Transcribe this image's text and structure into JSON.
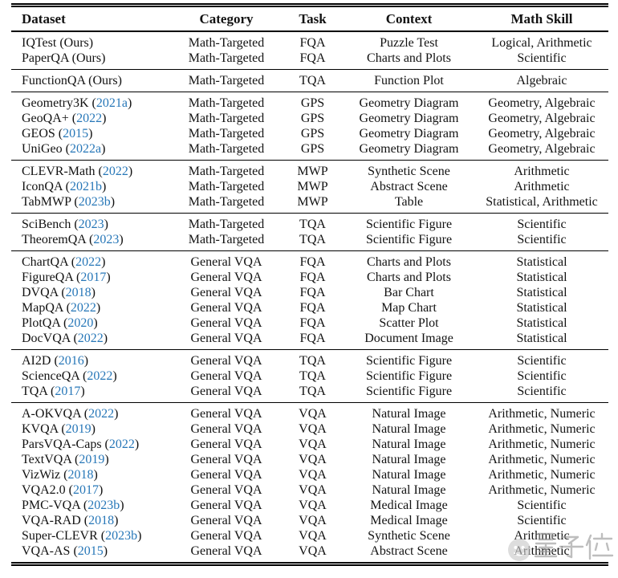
{
  "colors": {
    "citation_blue": "#2777b8",
    "text": "#121212",
    "rule": "#000000",
    "watermark_gray": "#9b9b9b"
  },
  "table": {
    "columns": [
      "Dataset",
      "Category",
      "Task",
      "Context",
      "Math Skill"
    ],
    "groups": [
      [
        {
          "dataset": "IQTest",
          "ref": "Ours",
          "ref_blue": false,
          "category": "Math-Targeted",
          "task": "FQA",
          "context": "Puzzle Test",
          "skill": "Logical, Arithmetic"
        },
        {
          "dataset": "PaperQA",
          "ref": "Ours",
          "ref_blue": false,
          "category": "Math-Targeted",
          "task": "FQA",
          "context": "Charts and Plots",
          "skill": "Scientific"
        }
      ],
      [
        {
          "dataset": "FunctionQA",
          "ref": "Ours",
          "ref_blue": false,
          "category": "Math-Targeted",
          "task": "TQA",
          "context": "Function Plot",
          "skill": "Algebraic"
        }
      ],
      [
        {
          "dataset": "Geometry3K",
          "ref": "2021a",
          "ref_blue": true,
          "category": "Math-Targeted",
          "task": "GPS",
          "context": "Geometry Diagram",
          "skill": "Geometry, Algebraic"
        },
        {
          "dataset": "GeoQA+",
          "ref": "2022",
          "ref_blue": true,
          "category": "Math-Targeted",
          "task": "GPS",
          "context": "Geometry Diagram",
          "skill": "Geometry, Algebraic"
        },
        {
          "dataset": "GEOS",
          "ref": "2015",
          "ref_blue": true,
          "category": "Math-Targeted",
          "task": "GPS",
          "context": "Geometry Diagram",
          "skill": "Geometry, Algebraic"
        },
        {
          "dataset": "UniGeo",
          "ref": "2022a",
          "ref_blue": true,
          "category": "Math-Targeted",
          "task": "GPS",
          "context": "Geometry Diagram",
          "skill": "Geometry, Algebraic"
        }
      ],
      [
        {
          "dataset": "CLEVR-Math",
          "ref": "2022",
          "ref_blue": true,
          "category": "Math-Targeted",
          "task": "MWP",
          "context": "Synthetic Scene",
          "skill": "Arithmetic"
        },
        {
          "dataset": "IconQA",
          "ref": "2021b",
          "ref_blue": true,
          "category": "Math-Targeted",
          "task": "MWP",
          "context": "Abstract Scene",
          "skill": "Arithmetic"
        },
        {
          "dataset": "TabMWP",
          "ref": "2023b",
          "ref_blue": true,
          "category": "Math-Targeted",
          "task": "MWP",
          "context": "Table",
          "skill": "Statistical, Arithmetic"
        }
      ],
      [
        {
          "dataset": "SciBench",
          "ref": "2023",
          "ref_blue": true,
          "category": "Math-Targeted",
          "task": "TQA",
          "context": "Scientific Figure",
          "skill": "Scientific"
        },
        {
          "dataset": "TheoremQA",
          "ref": "2023",
          "ref_blue": true,
          "category": "Math-Targeted",
          "task": "TQA",
          "context": "Scientific Figure",
          "skill": "Scientific"
        }
      ],
      [
        {
          "dataset": "ChartQA",
          "ref": "2022",
          "ref_blue": true,
          "category": "General VQA",
          "task": "FQA",
          "context": "Charts and Plots",
          "skill": "Statistical"
        },
        {
          "dataset": "FigureQA",
          "ref": "2017",
          "ref_blue": true,
          "category": "General VQA",
          "task": "FQA",
          "context": "Charts and Plots",
          "skill": "Statistical"
        },
        {
          "dataset": "DVQA",
          "ref": "2018",
          "ref_blue": true,
          "category": "General VQA",
          "task": "FQA",
          "context": "Bar Chart",
          "skill": "Statistical"
        },
        {
          "dataset": "MapQA",
          "ref": "2022",
          "ref_blue": true,
          "category": "General VQA",
          "task": "FQA",
          "context": "Map Chart",
          "skill": "Statistical"
        },
        {
          "dataset": "PlotQA",
          "ref": "2020",
          "ref_blue": true,
          "category": "General VQA",
          "task": "FQA",
          "context": "Scatter Plot",
          "skill": "Statistical"
        },
        {
          "dataset": "DocVQA",
          "ref": "2022",
          "ref_blue": true,
          "category": "General VQA",
          "task": "FQA",
          "context": "Document Image",
          "skill": "Statistical"
        }
      ],
      [
        {
          "dataset": "AI2D",
          "ref": "2016",
          "ref_blue": true,
          "category": "General VQA",
          "task": "TQA",
          "context": "Scientific Figure",
          "skill": "Scientific"
        },
        {
          "dataset": "ScienceQA",
          "ref": "2022",
          "ref_blue": true,
          "category": "General VQA",
          "task": "TQA",
          "context": "Scientific Figure",
          "skill": "Scientific"
        },
        {
          "dataset": "TQA",
          "ref": "2017",
          "ref_blue": true,
          "category": "General VQA",
          "task": "TQA",
          "context": "Scientific Figure",
          "skill": "Scientific"
        }
      ],
      [
        {
          "dataset": "A-OKVQA",
          "ref": "2022",
          "ref_blue": true,
          "category": "General VQA",
          "task": "VQA",
          "context": "Natural Image",
          "skill": "Arithmetic, Numeric"
        },
        {
          "dataset": "KVQA",
          "ref": "2019",
          "ref_blue": true,
          "category": "General VQA",
          "task": "VQA",
          "context": "Natural Image",
          "skill": "Arithmetic, Numeric"
        },
        {
          "dataset": "ParsVQA-Caps",
          "ref": "2022",
          "ref_blue": true,
          "category": "General VQA",
          "task": "VQA",
          "context": "Natural Image",
          "skill": "Arithmetic, Numeric"
        },
        {
          "dataset": "TextVQA",
          "ref": "2019",
          "ref_blue": true,
          "category": "General VQA",
          "task": "VQA",
          "context": "Natural Image",
          "skill": "Arithmetic, Numeric"
        },
        {
          "dataset": "VizWiz",
          "ref": "2018",
          "ref_blue": true,
          "category": "General VQA",
          "task": "VQA",
          "context": "Natural Image",
          "skill": "Arithmetic, Numeric"
        },
        {
          "dataset": "VQA2.0",
          "ref": "2017",
          "ref_blue": true,
          "category": "General VQA",
          "task": "VQA",
          "context": "Natural Image",
          "skill": "Arithmetic, Numeric"
        },
        {
          "dataset": "PMC-VQA",
          "ref": "2023b",
          "ref_blue": true,
          "category": "General VQA",
          "task": "VQA",
          "context": "Medical Image",
          "skill": "Scientific"
        },
        {
          "dataset": "VQA-RAD",
          "ref": "2018",
          "ref_blue": true,
          "category": "General VQA",
          "task": "VQA",
          "context": "Medical Image",
          "skill": "Scientific"
        },
        {
          "dataset": "Super-CLEVR",
          "ref": "2023b",
          "ref_blue": true,
          "category": "General VQA",
          "task": "VQA",
          "context": "Synthetic Scene",
          "skill": "Arithmetic"
        },
        {
          "dataset": "VQA-AS",
          "ref": "2015",
          "ref_blue": true,
          "category": "General VQA",
          "task": "VQA",
          "context": "Abstract Scene",
          "skill": "Arithmetic"
        }
      ]
    ]
  },
  "watermark": {
    "text": "量子位"
  }
}
